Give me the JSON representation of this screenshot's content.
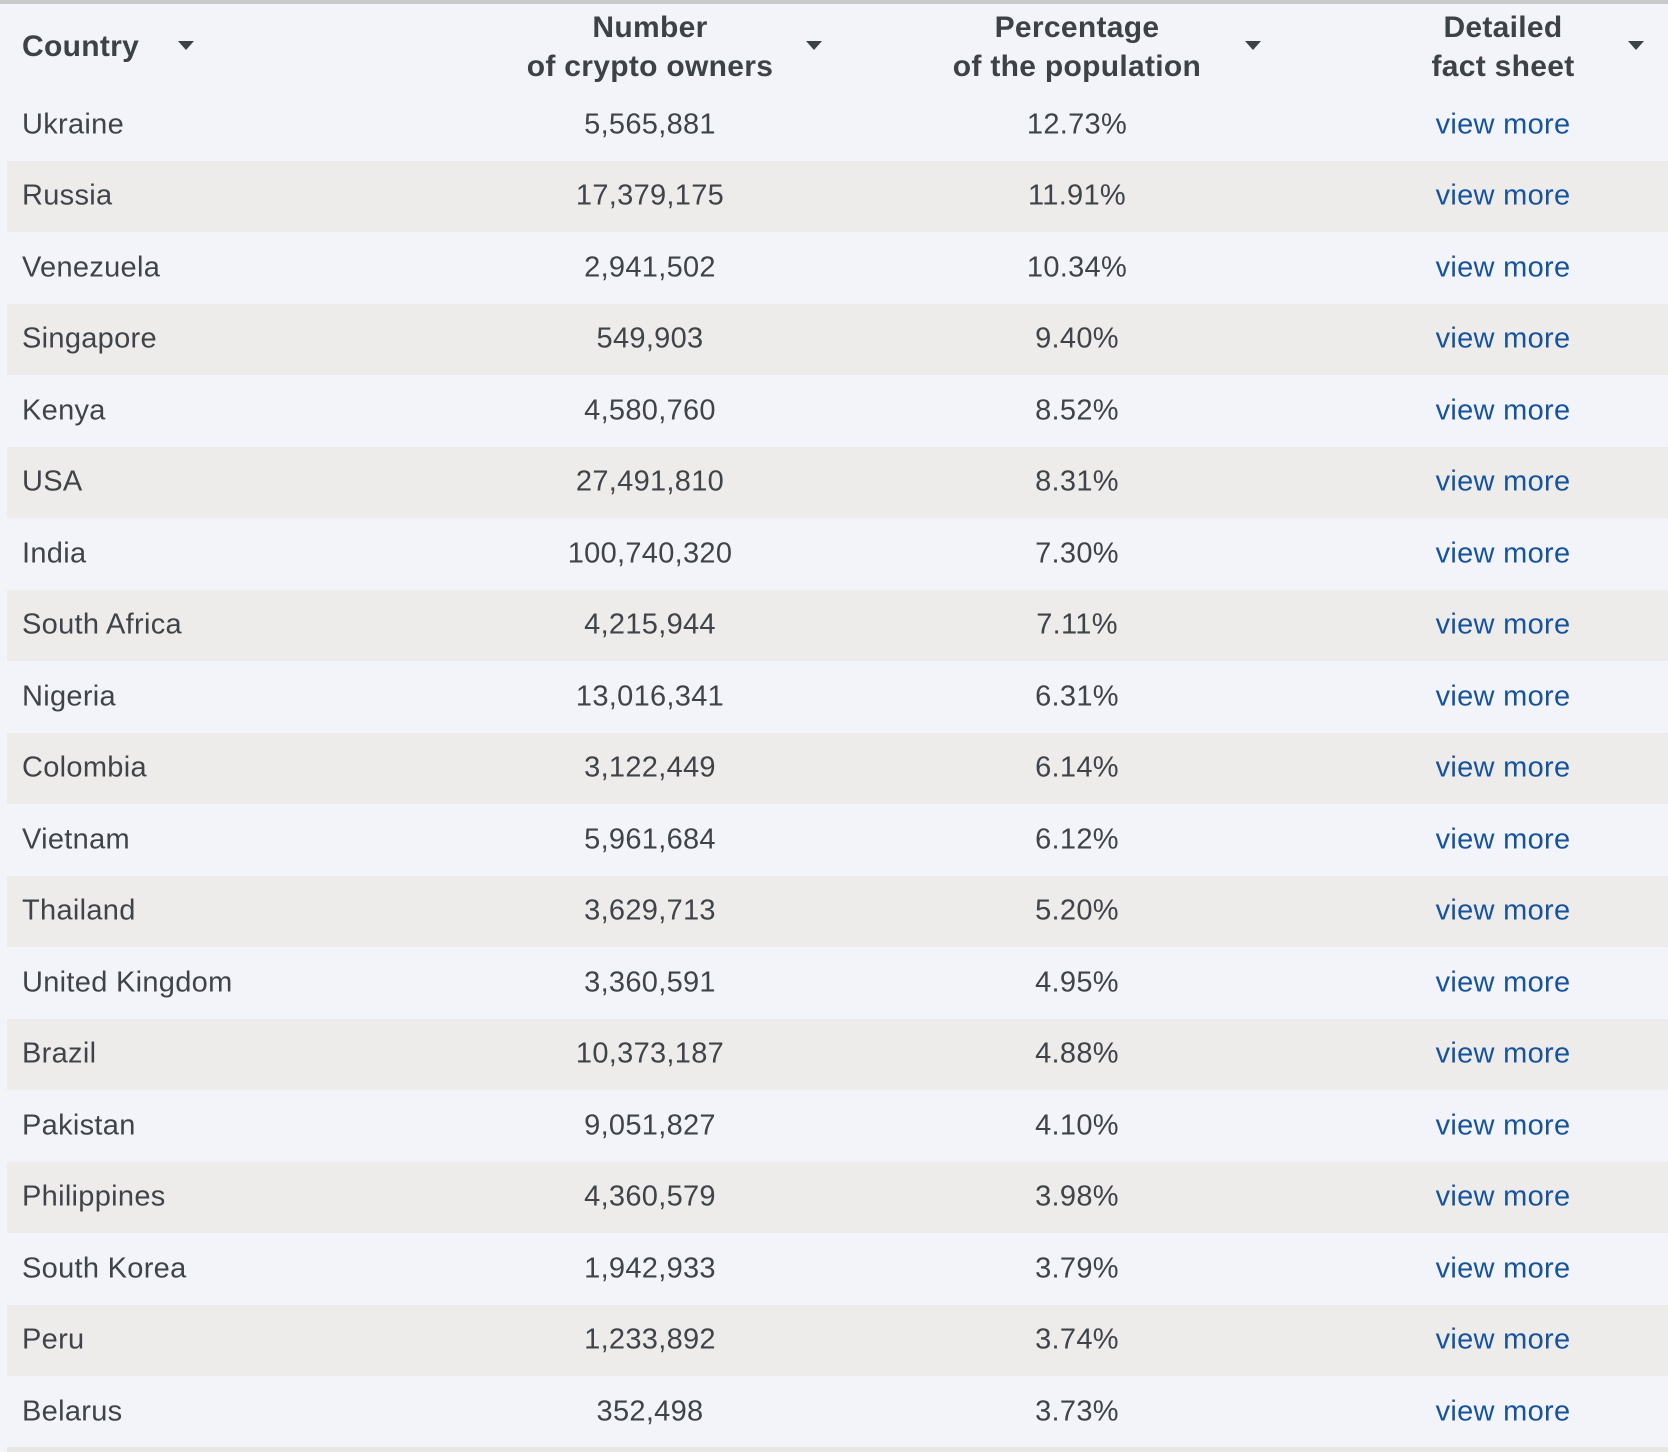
{
  "table": {
    "header": {
      "columns": [
        {
          "id": "country",
          "label": "Country"
        },
        {
          "id": "owners",
          "label_line1": "Number",
          "label_line2": "of crypto owners"
        },
        {
          "id": "pct",
          "label_line1": "Percentage",
          "label_line2": "of the population"
        },
        {
          "id": "fact",
          "label_line1": "Detailed",
          "label_line2": "fact sheet"
        }
      ],
      "sort_icon": "caret-down-icon"
    },
    "view_more_label": "view more",
    "rows": [
      {
        "country": "Ukraine",
        "owners": "5,565,881",
        "pct": "12.73%"
      },
      {
        "country": "Russia",
        "owners": "17,379,175",
        "pct": "11.91%"
      },
      {
        "country": "Venezuela",
        "owners": "2,941,502",
        "pct": "10.34%"
      },
      {
        "country": "Singapore",
        "owners": "549,903",
        "pct": "9.40%"
      },
      {
        "country": "Kenya",
        "owners": "4,580,760",
        "pct": "8.52%"
      },
      {
        "country": "USA",
        "owners": "27,491,810",
        "pct": "8.31%"
      },
      {
        "country": "India",
        "owners": "100,740,320",
        "pct": "7.30%"
      },
      {
        "country": "South Africa",
        "owners": "4,215,944",
        "pct": "7.11%"
      },
      {
        "country": "Nigeria",
        "owners": "13,016,341",
        "pct": "6.31%"
      },
      {
        "country": "Colombia",
        "owners": "3,122,449",
        "pct": "6.14%"
      },
      {
        "country": "Vietnam",
        "owners": "5,961,684",
        "pct": "6.12%"
      },
      {
        "country": "Thailand",
        "owners": "3,629,713",
        "pct": "5.20%"
      },
      {
        "country": "United Kingdom",
        "owners": "3,360,591",
        "pct": "4.95%"
      },
      {
        "country": "Brazil",
        "owners": "10,373,187",
        "pct": "4.88%"
      },
      {
        "country": "Pakistan",
        "owners": "9,051,827",
        "pct": "4.10%"
      },
      {
        "country": "Philippines",
        "owners": "4,360,579",
        "pct": "3.98%"
      },
      {
        "country": "South Korea",
        "owners": "1,942,933",
        "pct": "3.79%"
      },
      {
        "country": "Peru",
        "owners": "1,233,892",
        "pct": "3.74%"
      },
      {
        "country": "Belarus",
        "owners": "352,498",
        "pct": "3.73%"
      }
    ],
    "colors": {
      "page_background": "#f2f4f9",
      "stripe": "#edecea",
      "top_border": "#c9c9c9",
      "text": "#3f4449",
      "link": "#16539c"
    }
  }
}
